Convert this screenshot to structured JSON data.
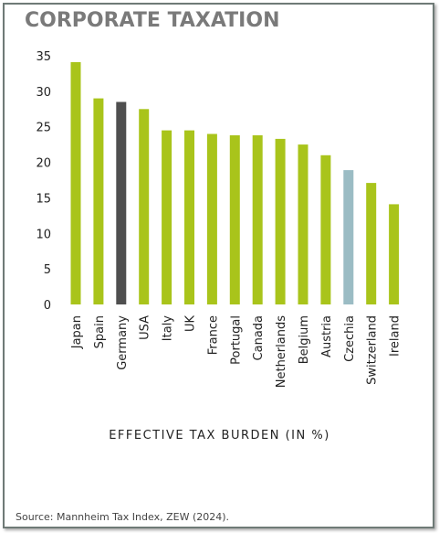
{
  "chart_data": {
    "type": "bar",
    "title": "CORPORATE TAXATION",
    "xlabel": "EFFECTIVE TAX BURDEN (IN %)",
    "ylabel": "",
    "ylim": [
      0,
      35
    ],
    "yticks": [
      "0",
      "5",
      "10",
      "15",
      "20",
      "25",
      "30",
      "35"
    ],
    "grid": false,
    "categories": [
      "Japan",
      "Spain",
      "Germany",
      "USA",
      "Italy",
      "UK",
      "France",
      "Portugal",
      "Canada",
      "Netherlands",
      "Belgium",
      "Austria",
      "Czechia",
      "Switzerland",
      "Ireland"
    ],
    "values": [
      34.1,
      29.0,
      28.5,
      27.5,
      24.5,
      24.5,
      24.0,
      23.8,
      23.8,
      23.3,
      22.5,
      21.0,
      18.9,
      17.1,
      14.1
    ],
    "colors": {
      "default": "#a9c41b",
      "Germany": "#4f4f4f",
      "Czechia": "#9bbcc4"
    }
  },
  "source": "Source: Mannheim Tax Index, ZEW (2024)."
}
